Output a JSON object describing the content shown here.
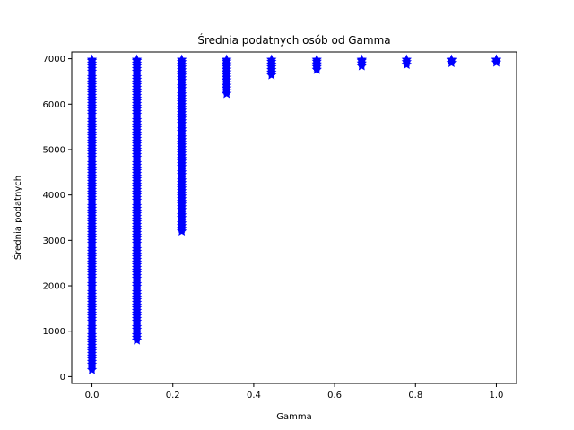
{
  "chart_data": {
    "type": "scatter",
    "title": "Średnia podatnych osób od Gamma",
    "xlabel": "Gamma",
    "ylabel": "Średnia podatnych",
    "xlim": [
      -0.05,
      1.05
    ],
    "ylim": [
      -150,
      7150
    ],
    "xticks": [
      0.0,
      0.2,
      0.4,
      0.6,
      0.8,
      1.0
    ],
    "xtick_labels": [
      "0.0",
      "0.2",
      "0.4",
      "0.6",
      "0.8",
      "1.0"
    ],
    "yticks": [
      0,
      1000,
      2000,
      3000,
      4000,
      5000,
      6000,
      7000
    ],
    "ytick_labels": [
      "0",
      "1000",
      "2000",
      "3000",
      "4000",
      "5000",
      "6000",
      "7000"
    ],
    "grid": false,
    "marker": "star",
    "color": "#0000ff",
    "series": [
      {
        "x": [
          0.0,
          0.111,
          0.222,
          0.333,
          0.444,
          0.556,
          0.667,
          0.778,
          0.889,
          1.0
        ],
        "y_min": [
          150,
          800,
          3200,
          6230,
          6640,
          6760,
          6840,
          6870,
          6910,
          6920
        ],
        "y_max": [
          6980,
          6980,
          6980,
          6980,
          6980,
          6980,
          6980,
          6980,
          6980,
          6980
        ]
      }
    ]
  }
}
